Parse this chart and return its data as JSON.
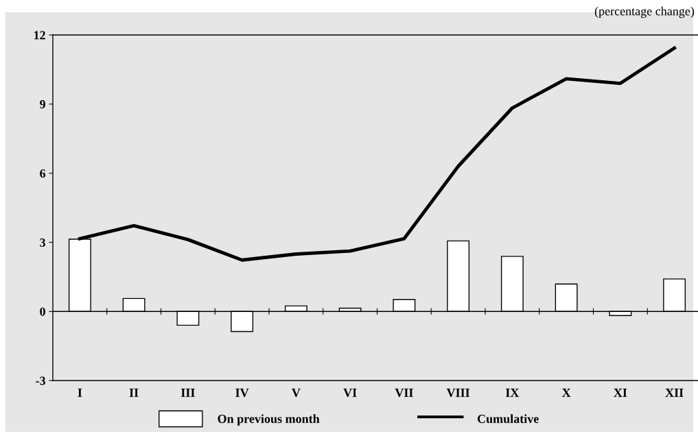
{
  "chart_data": {
    "type": "bar",
    "subtitle": "(percentage change)",
    "categories": [
      "I",
      "II",
      "III",
      "IV",
      "V",
      "VI",
      "VII",
      "VIII",
      "IX",
      "X",
      "XI",
      "XII"
    ],
    "series": [
      {
        "name": "On previous month",
        "color": "#ffffff",
        "values": [
          3.14,
          0.56,
          -0.6,
          -0.87,
          0.24,
          0.14,
          0.52,
          3.06,
          2.39,
          1.19,
          -0.18,
          1.41
        ]
      },
      {
        "name": "Cumulative",
        "type": "line",
        "color": "#000000",
        "values": [
          3.16,
          3.72,
          3.12,
          2.23,
          2.49,
          2.62,
          3.16,
          6.3,
          8.83,
          10.1,
          9.9,
          11.43
        ]
      }
    ],
    "ylim": [
      -3,
      12
    ],
    "yticks": [
      -3,
      0,
      3,
      6,
      9,
      12
    ],
    "ref_lines": [
      {
        "axis": "y",
        "value": 0
      }
    ],
    "grid": false,
    "legend": "bottom",
    "marker": "none",
    "line_style": "solid"
  }
}
